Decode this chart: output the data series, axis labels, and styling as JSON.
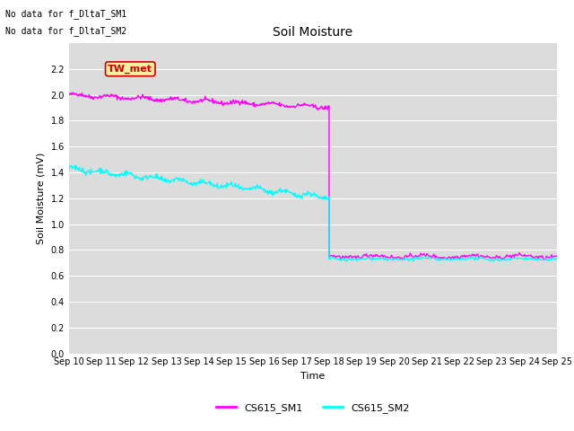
{
  "title": "Soil Moisture",
  "ylabel": "Soil Moisture (mV)",
  "xlabel": "Time",
  "ylim": [
    0.0,
    2.4
  ],
  "yticks": [
    0.0,
    0.2,
    0.4,
    0.6,
    0.8,
    1.0,
    1.2,
    1.4,
    1.6,
    1.8,
    2.0,
    2.2
  ],
  "xtick_labels": [
    "Sep 10",
    "Sep 11",
    "Sep 12",
    "Sep 13",
    "Sep 14",
    "Sep 15",
    "Sep 16",
    "Sep 17",
    "Sep 18",
    "Sep 19",
    "Sep 20",
    "Sep 21",
    "Sep 22",
    "Sep 23",
    "Sep 24",
    "Sep 25"
  ],
  "color_sm1": "#ff00ff",
  "color_sm2": "#00ffff",
  "background_color": "#dcdcdc",
  "legend_sm1": "CS615_SM1",
  "legend_sm2": "CS615_SM2",
  "no_data_text1": "No data for f_DltaT_SM1",
  "no_data_text2": "No data for f_DltaT_SM2",
  "tw_met_label": "TW_met",
  "tw_met_color": "#cc0000",
  "tw_met_bg": "#f5f0a0"
}
